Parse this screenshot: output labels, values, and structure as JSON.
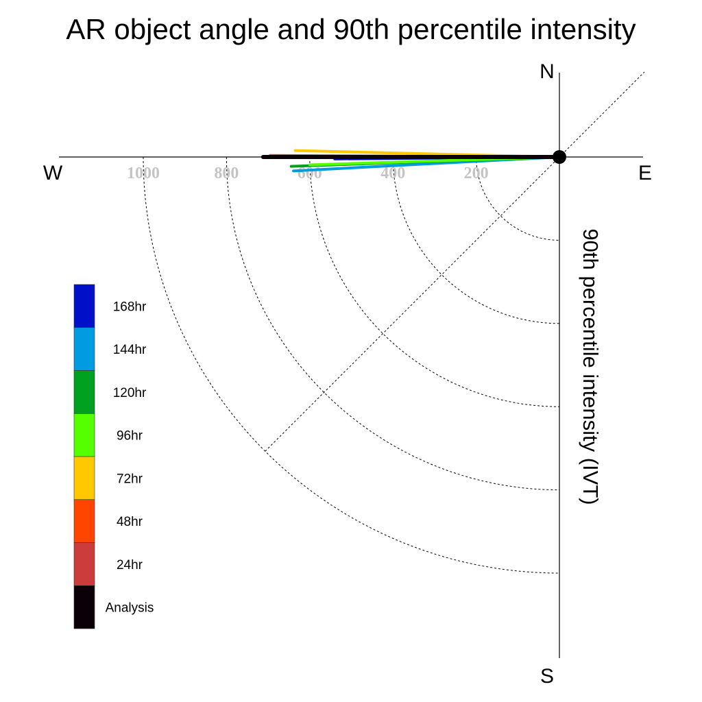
{
  "chart_data": {
    "type": "polar-quadrant-lines",
    "title": "AR object angle and 90th percentile intensity",
    "ylabel": "90th percentile intensity (IVT)",
    "directions": {
      "north": "N",
      "south": "S",
      "east": "E",
      "west": "W"
    },
    "radial_ticks": [
      200,
      400,
      600,
      800,
      1000
    ],
    "radial_tick_labels": [
      "200",
      "400",
      "600",
      "800",
      "1000"
    ],
    "radial_range": [
      0,
      1200
    ],
    "grid": true,
    "legend_placement": "left",
    "series": [
      {
        "name": "168hr",
        "color": "#0010c8",
        "angle_deg": 180.5,
        "intensity": 540
      },
      {
        "name": "144hr",
        "color": "#009be0",
        "angle_deg": 183.0,
        "intensity": 640
      },
      {
        "name": "120hr",
        "color": "#00a020",
        "angle_deg": 182.0,
        "intensity": 645
      },
      {
        "name": "96hr",
        "color": "#55ff00",
        "angle_deg": 181.8,
        "intensity": 600
      },
      {
        "name": "72hr",
        "color": "#ffc800",
        "angle_deg": 178.6,
        "intensity": 635
      },
      {
        "name": "48hr",
        "color": "#ff4500",
        "angle_deg": 179.7,
        "intensity": 695
      },
      {
        "name": "24hr",
        "color": "#cc3c3c",
        "angle_deg": 180.0,
        "intensity": 710
      },
      {
        "name": "Analysis",
        "color": "#0c0008",
        "angle_deg": 180.0,
        "intensity": 712
      }
    ]
  },
  "legend": {
    "items": [
      {
        "label": "168hr",
        "color": "#0010c8"
      },
      {
        "label": "144hr",
        "color": "#009be0"
      },
      {
        "label": "120hr",
        "color": "#00a020"
      },
      {
        "label": "96hr",
        "color": "#55ff00"
      },
      {
        "label": "72hr",
        "color": "#ffc800"
      },
      {
        "label": "48hr",
        "color": "#ff4500"
      },
      {
        "label": "24hr",
        "color": "#cc3c3c"
      },
      {
        "label": "Analysis",
        "color": "#0c0008"
      }
    ]
  }
}
